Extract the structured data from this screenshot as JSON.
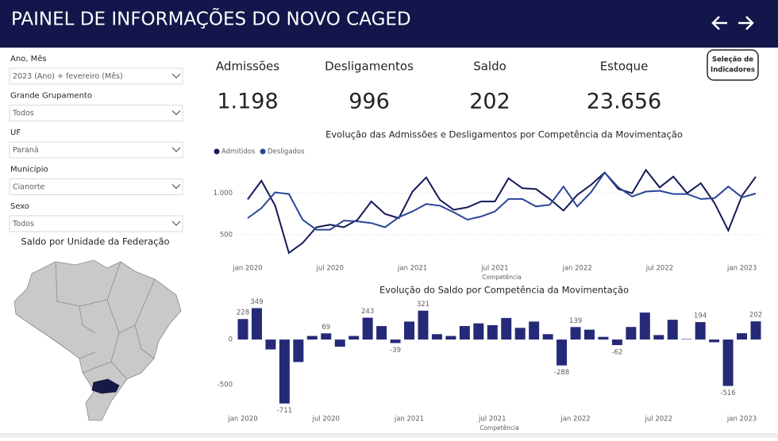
{
  "header": {
    "title": "PAINEL DE INFORMAÇÕES DO NOVO CAGED"
  },
  "filters": [
    {
      "label": "Ano, Mês",
      "value": "2023 (Ano) + fevereiro (Mês)"
    },
    {
      "label": "Grande Grupamento",
      "value": "Todos"
    },
    {
      "label": "UF",
      "value": "Paraná"
    },
    {
      "label": "Município",
      "value": "Cianorte"
    },
    {
      "label": "Sexo",
      "value": "Todos"
    }
  ],
  "map_title": "Saldo por Unidade da Federação",
  "kpis": [
    {
      "label": "Admissões",
      "value": "1.198"
    },
    {
      "label": "Desligamentos",
      "value": "996"
    },
    {
      "label": "Saldo",
      "value": "202"
    },
    {
      "label": "Estoque",
      "value": "23.656"
    }
  ],
  "button": {
    "lines": [
      "Seleção de",
      "Indicadores"
    ]
  },
  "chart_data": [
    {
      "type": "line",
      "title": "Evolução das Admissões e Desligamentos por Competência da Movimentação",
      "x_label": "Competência",
      "categories": [
        "jan 2020",
        null,
        null,
        null,
        null,
        null,
        "jul 2020",
        null,
        null,
        null,
        null,
        null,
        "jan 2021",
        null,
        null,
        null,
        null,
        null,
        "jul 2021",
        null,
        null,
        null,
        null,
        null,
        "jan 2022",
        null,
        null,
        null,
        null,
        null,
        "jul 2022",
        null,
        null,
        null,
        null,
        null,
        "jan 2023",
        null
      ],
      "series": [
        {
          "name": "Admitidos",
          "color": "#131a58",
          "values": [
            925,
            1150,
            850,
            280,
            400,
            590,
            620,
            590,
            680,
            900,
            750,
            700,
            1020,
            1190,
            920,
            800,
            830,
            900,
            900,
            1180,
            1060,
            1050,
            930,
            790,
            980,
            1100,
            1250,
            1050,
            1000,
            1280,
            1070,
            1200,
            1000,
            1120,
            880,
            550,
            970,
            1198
          ]
        },
        {
          "name": "Desligados",
          "color": "#2b4596",
          "values": [
            700,
            820,
            1010,
            990,
            680,
            560,
            560,
            670,
            660,
            640,
            590,
            710,
            780,
            870,
            850,
            770,
            680,
            720,
            780,
            930,
            930,
            840,
            860,
            1080,
            840,
            1010,
            1250,
            1070,
            960,
            1020,
            1030,
            990,
            990,
            930,
            940,
            1080,
            950,
            996
          ]
        }
      ],
      "ylim": [
        250,
        1350
      ],
      "yticks": [
        500,
        {
          "value": 1000,
          "label": "1.000"
        }
      ],
      "grid": true,
      "legend": "top-left"
    },
    {
      "type": "bar",
      "title": "Evolução do Saldo por Competência da Movimentação",
      "x_label": "Competência",
      "categories": [
        "jan 2020",
        null,
        null,
        null,
        null,
        null,
        "jul 2020",
        null,
        null,
        null,
        null,
        null,
        "jan 2021",
        null,
        null,
        null,
        null,
        null,
        "jul 2021",
        null,
        null,
        null,
        null,
        null,
        "jan 2022",
        null,
        null,
        null,
        null,
        null,
        "jul 2022",
        null,
        null,
        null,
        null,
        null,
        "jan 2023",
        null
      ],
      "values": [
        228,
        349,
        -110,
        -711,
        -250,
        40,
        69,
        -80,
        40,
        243,
        150,
        -39,
        200,
        321,
        60,
        40,
        150,
        180,
        160,
        240,
        130,
        200,
        60,
        -288,
        139,
        110,
        30,
        -62,
        140,
        300,
        50,
        220,
        5,
        194,
        -30,
        -516,
        70,
        202
      ],
      "value_labels": [
        "228",
        "349",
        null,
        "-711",
        null,
        null,
        "69",
        null,
        null,
        "243",
        null,
        "-39",
        null,
        "321",
        null,
        null,
        null,
        null,
        null,
        null,
        null,
        null,
        null,
        "-288",
        "139",
        null,
        null,
        "-62",
        null,
        null,
        null,
        null,
        null,
        "194",
        null,
        "-516",
        null,
        "202"
      ],
      "color": "#252a78",
      "ylim": [
        -740,
        380
      ],
      "yticks": [
        -500,
        0
      ],
      "grid": false
    }
  ]
}
